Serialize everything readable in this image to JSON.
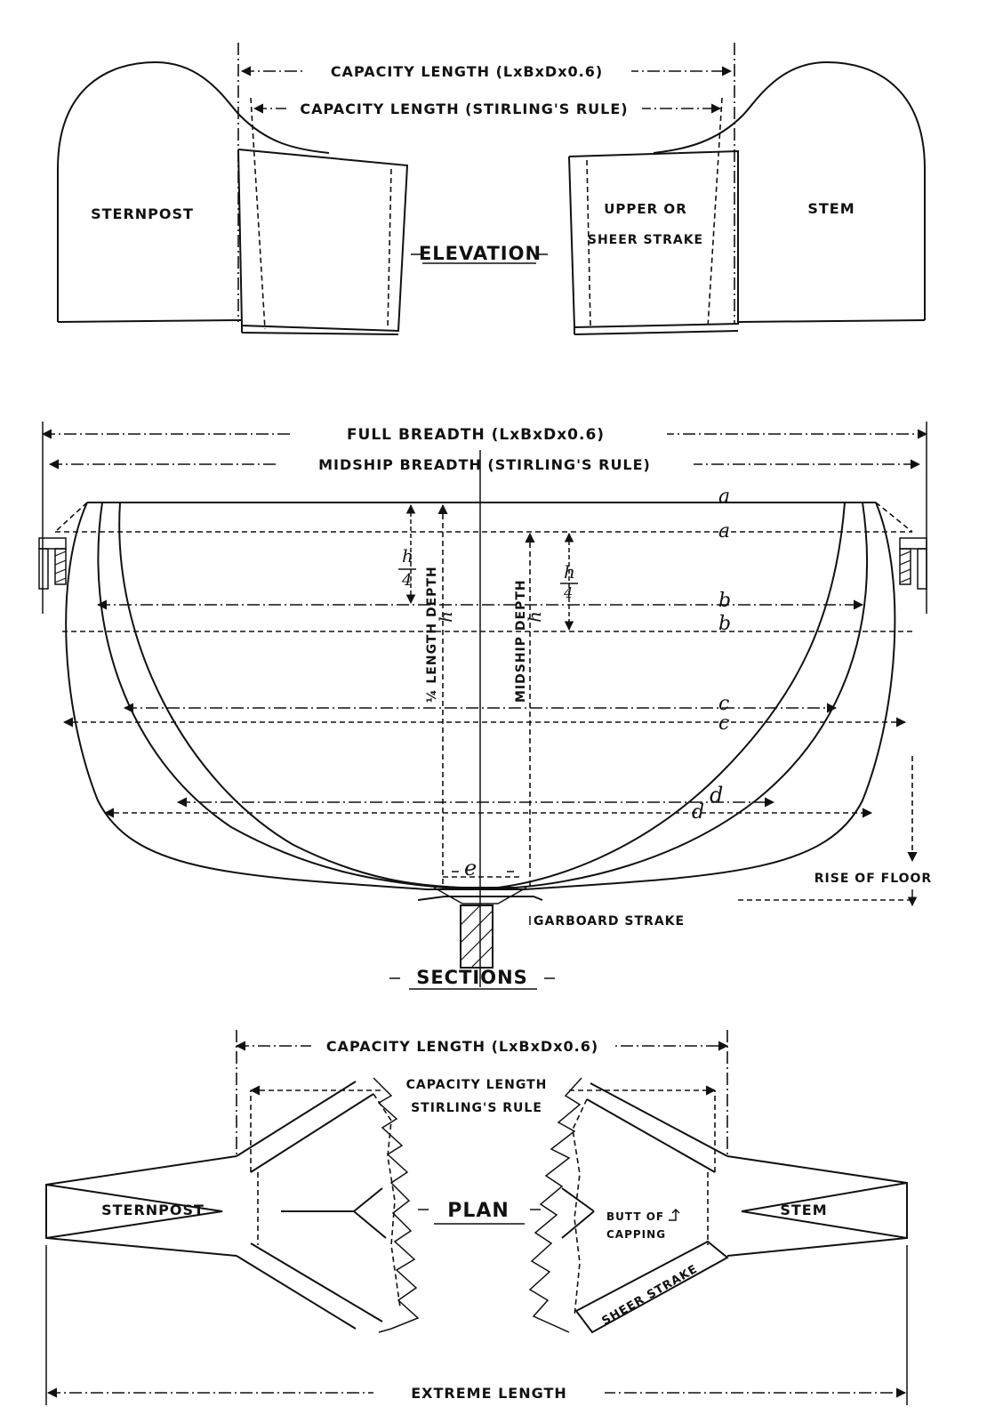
{
  "elevation": {
    "title": "ELEVATION",
    "capacity_length_a": "CAPACITY LENGTH (LxBxDx0.6)",
    "capacity_length_b": "CAPACITY LENGTH (STIRLING'S RULE)",
    "sternpost": "STERNPOST",
    "stem": "STEM",
    "sheer_line1": "UPPER OR",
    "sheer_line2": "SHEER STRAKE"
  },
  "sections": {
    "title": "SECTIONS",
    "full_breadth": "FULL BREADTH (LxBxDx0.6)",
    "midship_breadth": "MIDSHIP BREADTH (STIRLING'S RULE)",
    "quarter_depth": "¼ LENGTH DEPTH",
    "midship_depth": "MIDSHIP DEPTH",
    "h_label": "h",
    "h_quarter": "h",
    "h_quarter_den": "4",
    "letters": [
      "a",
      "a",
      "b",
      "b",
      "c",
      "c",
      "d",
      "d"
    ],
    "e_label": "e",
    "rise_of_floor": "RISE OF FLOOR",
    "garboard": "GARBOARD STRAKE"
  },
  "plan": {
    "title": "PLAN",
    "capacity_length_a": "CAPACITY LENGTH (LxBxDx0.6)",
    "capacity_length_b1": "CAPACITY LENGTH",
    "capacity_length_b2": "STIRLING'S RULE",
    "sternpost": "STERNPOST",
    "stem": "STEM",
    "butt1": "BUTT OF",
    "butt2": "CAPPING",
    "sheer_strake": "SHEER STRAKE",
    "extreme_length": "EXTREME LENGTH"
  }
}
